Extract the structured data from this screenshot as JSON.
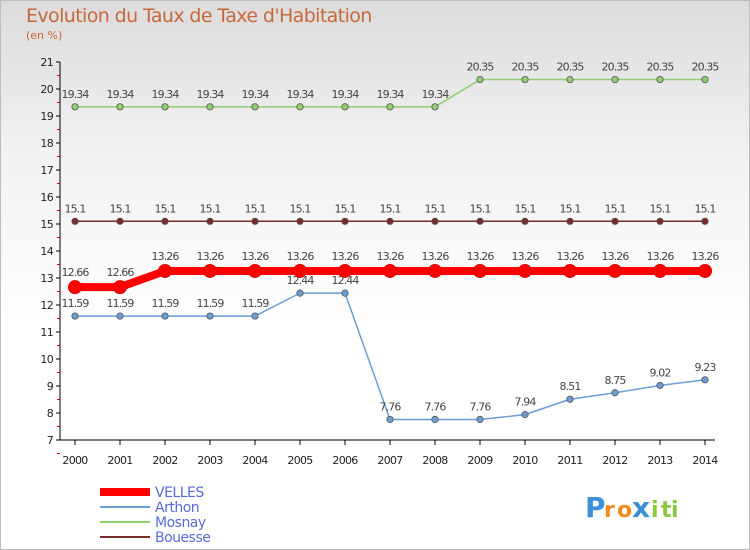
{
  "chart_data": {
    "type": "line",
    "title": "Evolution du Taux de Taxe d'Habitation",
    "subtitle": "(en %)",
    "x": [
      "2000",
      "2001",
      "2002",
      "2003",
      "2004",
      "2005",
      "2006",
      "2007",
      "2008",
      "2009",
      "2010",
      "2011",
      "2012",
      "2013",
      "2014"
    ],
    "ylim": [
      7,
      21
    ],
    "yticks": [
      7,
      8,
      9,
      10,
      11,
      12,
      13,
      14,
      15,
      16,
      17,
      18,
      19,
      20,
      21
    ],
    "series": [
      {
        "name": "VELLES",
        "color": "#ff0000",
        "values": [
          12.66,
          12.66,
          13.26,
          13.26,
          13.26,
          13.26,
          13.26,
          13.26,
          13.26,
          13.26,
          13.26,
          13.26,
          13.26,
          13.26,
          13.26
        ],
        "labels": [
          "12.66",
          "12.66",
          "13.26",
          "13.26",
          "13.26",
          "13.26",
          "13.26",
          "13.26",
          "13.26",
          "13.26",
          "13.26",
          "13.26",
          "13.26",
          "13.26",
          "13.26"
        ]
      },
      {
        "name": "Arthon",
        "color": "#6a9fd6",
        "values": [
          11.59,
          11.59,
          11.59,
          11.59,
          11.59,
          12.44,
          12.44,
          7.76,
          7.76,
          7.76,
          7.94,
          8.51,
          8.75,
          9.02,
          9.23
        ],
        "labels": [
          "11.59",
          "11.59",
          "11.59",
          "11.59",
          "11.59",
          "12.44",
          "12.44",
          "7.76",
          "7.76",
          "7.76",
          "7.94",
          "8.51",
          "8.75",
          "9.02",
          "9.23"
        ]
      },
      {
        "name": "Mosnay",
        "color": "#90d070",
        "values": [
          19.34,
          19.34,
          19.34,
          19.34,
          19.34,
          19.34,
          19.34,
          19.34,
          19.34,
          20.35,
          20.35,
          20.35,
          20.35,
          20.35,
          20.35
        ],
        "labels": [
          "19.34",
          "19.34",
          "19.34",
          "19.34",
          "19.34",
          "19.34",
          "19.34",
          "19.34",
          "19.34",
          "20.35",
          "20.35",
          "20.35",
          "20.35",
          "20.35",
          "20.35"
        ]
      },
      {
        "name": "Bouesse",
        "color": "#7a2a2a",
        "values": [
          15.1,
          15.1,
          15.1,
          15.1,
          15.1,
          15.1,
          15.1,
          15.1,
          15.1,
          15.1,
          15.1,
          15.1,
          15.1,
          15.1,
          15.1
        ],
        "labels": [
          "15.1",
          "15.1",
          "15.1",
          "15.1",
          "15.1",
          "15.1",
          "15.1",
          "15.1",
          "15.1",
          "15.1",
          "15.1",
          "15.1",
          "15.1",
          "15.1",
          "15.1"
        ]
      }
    ],
    "legend_position": "bottom-left",
    "grid": false
  },
  "logo": {
    "text": "Proxiti",
    "letters": [
      "P",
      "r",
      "o",
      "x",
      "i",
      "t",
      "i"
    ]
  }
}
